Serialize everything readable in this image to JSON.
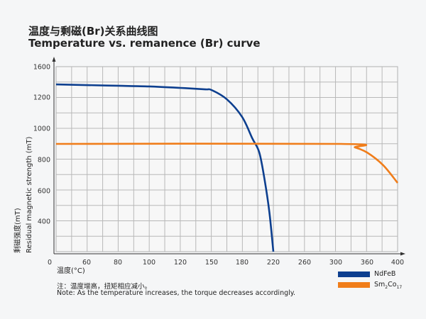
{
  "title_cn": "温度与剩磁(Br)关系曲线图",
  "title_en": "Temperature vs. remanence (Br) curve",
  "note_cn": "注：温度增高，扭矩相应减小。",
  "note_en": "Note: As the temperature increases, the torque decreases accordingly.",
  "chart_data": {
    "type": "line",
    "xlabel": "温度(°C)",
    "ylabel_cn": "剩磁强度(mT)",
    "ylabel_en": "Residual magnetic strength (mT)",
    "x_ticks": [
      "0",
      "60",
      "80",
      "100",
      "120",
      "150",
      "180",
      "220",
      "260",
      "300",
      "360",
      "400"
    ],
    "y_ticks": [
      "1600",
      "1200",
      "1000",
      "800",
      "600",
      "400"
    ],
    "xlim": [
      0,
      400
    ],
    "ylim": [
      200,
      1600
    ],
    "grid": true,
    "legend_position": "bottom-right",
    "series": [
      {
        "name": "NdFeB",
        "color": "#0d3f8f",
        "x": [
          0,
          60,
          80,
          100,
          120,
          144,
          150,
          165,
          180,
          193,
          202,
          209,
          215,
          220
        ],
        "y": [
          1367,
          1358,
          1349,
          1340,
          1321,
          1302,
          1293,
          1186,
          1073,
          936,
          845,
          664,
          455,
          200
        ]
      },
      {
        "name": "Sm2Co17",
        "name_base": "Sm",
        "name_sub1": "2",
        "name_mid": "Co",
        "name_sub2": "17",
        "color": "#f07d1a",
        "x": [
          0,
          310,
          337,
          360,
          381,
          400
        ],
        "y": [
          900,
          900,
          877,
          845,
          764,
          650
        ]
      }
    ]
  }
}
